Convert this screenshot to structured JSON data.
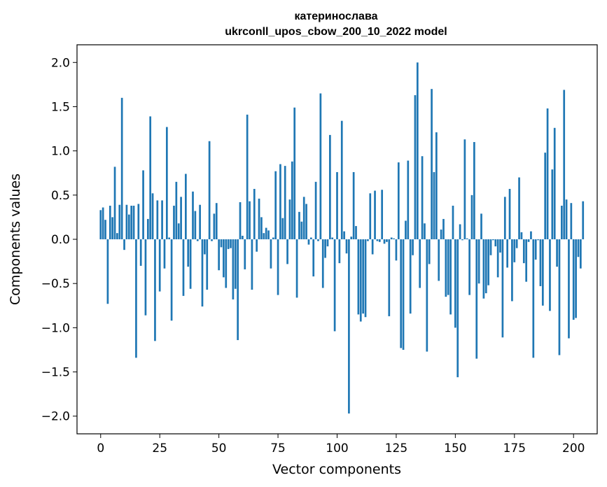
{
  "chart_data": {
    "type": "bar",
    "title_line1": "катеринослава",
    "title_line2": "ukrconll_upos_cbow_200_10_2022 model",
    "xlabel": "Vector components",
    "ylabel": "Components values",
    "xlim": [
      -10,
      210
    ],
    "ylim": [
      -2.2,
      2.2
    ],
    "xticks": [
      0,
      25,
      50,
      75,
      100,
      125,
      150,
      175,
      200
    ],
    "xtick_labels": [
      "0",
      "25",
      "50",
      "75",
      "100",
      "125",
      "150",
      "175",
      "200"
    ],
    "yticks": [
      2.0,
      1.5,
      1.0,
      0.5,
      0.0,
      -0.5,
      -1.0,
      -1.5,
      -2.0
    ],
    "ytick_labels": [
      "2.0",
      "1.5",
      "1.0",
      "0.5",
      "0.0",
      "−0.5",
      "−1.0",
      "−1.5",
      "−2.0"
    ],
    "bar_color": "#1f77b4",
    "values": [
      0.33,
      0.36,
      0.22,
      -0.73,
      0.38,
      0.25,
      0.82,
      0.07,
      0.39,
      1.6,
      -0.12,
      0.39,
      0.28,
      0.38,
      0.38,
      -1.34,
      0.4,
      -0.3,
      0.78,
      -0.86,
      0.23,
      1.39,
      0.52,
      -1.15,
      0.44,
      -0.59,
      0.44,
      -0.33,
      1.27,
      0.02,
      -0.92,
      0.38,
      0.65,
      0.18,
      0.48,
      -0.64,
      0.74,
      -0.31,
      -0.56,
      0.54,
      0.32,
      -0.02,
      0.39,
      -0.76,
      -0.17,
      -0.57,
      1.11,
      -0.02,
      0.29,
      0.41,
      -0.35,
      -0.09,
      -0.43,
      -0.55,
      -0.11,
      -0.1,
      -0.68,
      -0.56,
      -1.14,
      0.42,
      0.04,
      -0.34,
      1.41,
      0.43,
      -0.57,
      0.57,
      -0.14,
      0.46,
      0.25,
      0.07,
      0.13,
      0.1,
      -0.33,
      0.02,
      0.77,
      -0.63,
      0.85,
      0.24,
      0.83,
      -0.28,
      0.45,
      0.88,
      1.49,
      -0.66,
      0.31,
      0.2,
      0.48,
      0.4,
      -0.06,
      0.02,
      -0.42,
      0.65,
      -0.02,
      1.65,
      -0.55,
      -0.21,
      -0.08,
      1.18,
      0.02,
      -1.04,
      0.76,
      -0.27,
      1.34,
      0.09,
      -0.16,
      -1.97,
      0.03,
      0.76,
      0.15,
      -0.85,
      -0.93,
      -0.84,
      -0.88,
      -0.02,
      0.52,
      -0.17,
      0.55,
      -0.02,
      -0.03,
      0.56,
      -0.05,
      -0.03,
      -0.87,
      0.02,
      0.01,
      -0.24,
      0.87,
      -1.23,
      -1.25,
      0.21,
      0.89,
      -0.84,
      -0.18,
      1.63,
      2.0,
      -0.55,
      0.94,
      0.18,
      -1.27,
      -0.28,
      1.7,
      0.76,
      1.21,
      -0.47,
      0.11,
      0.23,
      -0.65,
      -0.63,
      -0.85,
      0.38,
      -1.0,
      -1.56,
      0.17,
      -0.01,
      1.13,
      0.01,
      -0.63,
      0.5,
      1.1,
      -1.35,
      -0.5,
      0.29,
      -0.67,
      -0.61,
      -0.52,
      -0.18,
      -0.01,
      -0.08,
      -0.43,
      -0.15,
      -1.11,
      0.48,
      -0.32,
      0.57,
      -0.7,
      -0.26,
      -0.1,
      0.7,
      0.08,
      -0.27,
      -0.48,
      -0.03,
      0.09,
      -1.34,
      -0.23,
      -0.01,
      -0.53,
      -0.75,
      0.98,
      1.48,
      -0.81,
      0.79,
      1.26,
      -0.31,
      -1.31,
      0.38,
      1.69,
      0.45,
      -1.12,
      0.41,
      -0.91,
      -0.89,
      -0.2,
      -0.33,
      0.43
    ]
  }
}
